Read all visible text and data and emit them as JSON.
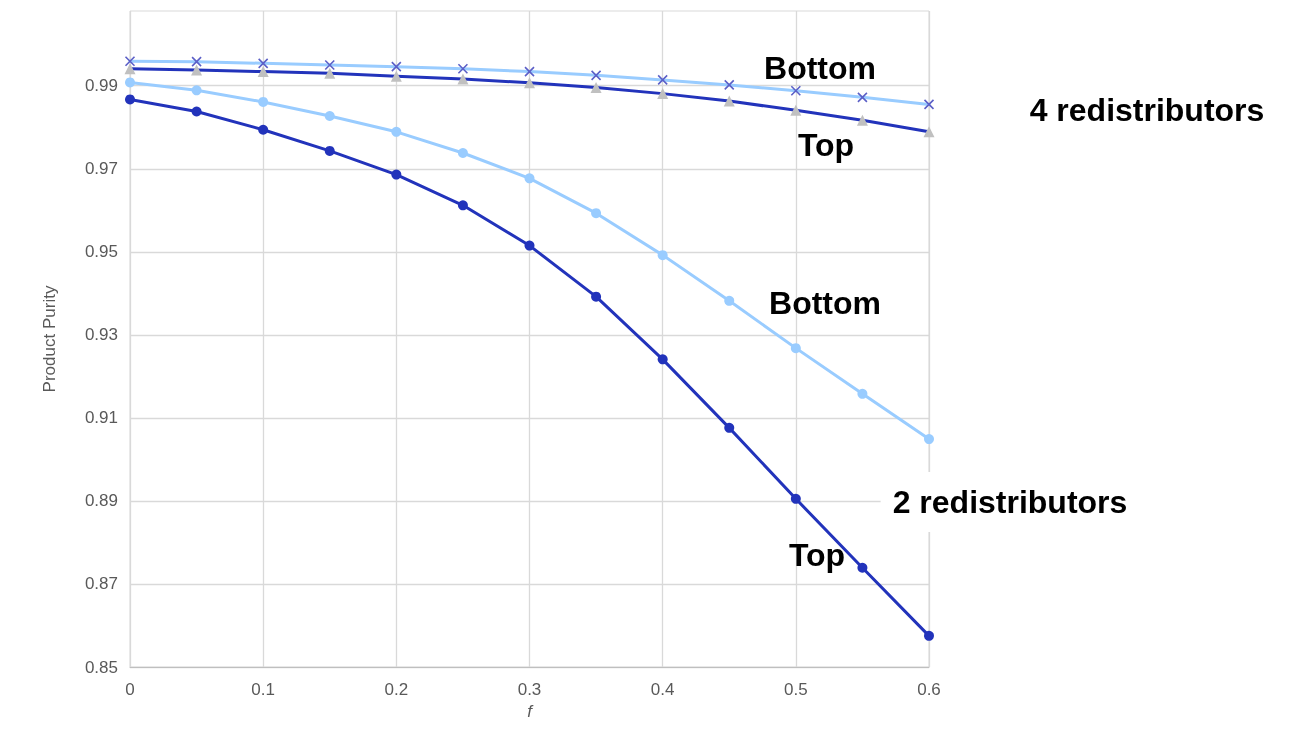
{
  "chart_data": {
    "type": "line",
    "xlabel": "f",
    "ylabel": "Product Purity",
    "x": [
      0,
      0.05,
      0.1,
      0.15,
      0.2,
      0.25,
      0.3,
      0.35,
      0.4,
      0.45,
      0.5,
      0.55,
      0.6
    ],
    "series": [
      {
        "color": "#99ccff",
        "marker": "cross",
        "values": [
          0.9959,
          0.9958,
          0.9954,
          0.995,
          0.9946,
          0.9941,
          0.9934,
          0.9925,
          0.9914,
          0.9902,
          0.9888,
          0.9872,
          0.9855
        ]
      },
      {
        "color": "#2233bb",
        "marker": "triangle",
        "values": [
          0.9941,
          0.9938,
          0.9934,
          0.993,
          0.9923,
          0.9916,
          0.9907,
          0.9896,
          0.9881,
          0.9863,
          0.9841,
          0.9817,
          0.9789
        ]
      },
      {
        "color": "#99ccff",
        "marker": "circle",
        "values": [
          0.9908,
          0.9889,
          0.9861,
          0.9827,
          0.9789,
          0.9738,
          0.9677,
          0.9593,
          0.9492,
          0.9382,
          0.9268,
          0.9158,
          0.9049
        ]
      },
      {
        "color": "#2233bb",
        "marker": "circle",
        "values": [
          0.9867,
          0.9838,
          0.9794,
          0.9743,
          0.9686,
          0.9612,
          0.9515,
          0.9392,
          0.9241,
          0.9076,
          0.8905,
          0.8739,
          0.8575
        ]
      }
    ],
    "xlim": [
      0,
      0.6
    ],
    "xticks": [
      0,
      0.1,
      0.2,
      0.3,
      0.4,
      0.5,
      0.6
    ],
    "ylim": [
      0.85,
      1.008
    ],
    "yticks": [
      0.85,
      0.87,
      0.89,
      0.91,
      0.93,
      0.95,
      0.97,
      0.99
    ],
    "grid": true,
    "annotations": [
      "Bottom",
      "Top",
      "4 redistributors",
      "Bottom",
      "2 redistributors",
      "Top"
    ]
  }
}
